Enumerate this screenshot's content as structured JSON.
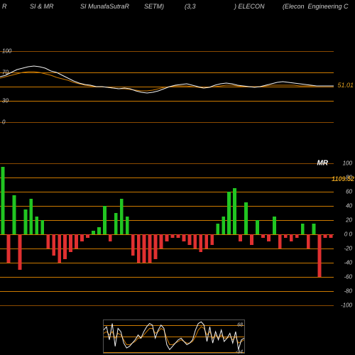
{
  "header": {
    "parts": [
      "R",
      "SI & MR",
      "SI MunafaSutraR",
      "SETM)",
      "(3,3",
      ") ELECON",
      "(Elecon  Engineering C"
    ]
  },
  "colors": {
    "background": "#000000",
    "grid_orange": "#cc7a00",
    "grid_dark_orange": "#8a4a00",
    "line_white": "#f0f0f0",
    "line_orange": "#cc7a00",
    "bar_green": "#21c521",
    "bar_red": "#e03030",
    "text": "#cccccc",
    "accent_orange": "#e0a020",
    "border": "#555555"
  },
  "top_chart": {
    "type": "line",
    "ylim": [
      0,
      100
    ],
    "gridlines": [
      {
        "y": 100,
        "label": "100",
        "color": "#8a4a00"
      },
      {
        "y": 70,
        "label": "70",
        "color": "#cc7a00"
      },
      {
        "y": 50,
        "label": "",
        "color": "#cc7a00"
      },
      {
        "y": 30,
        "label": "30",
        "color": "#cc7a00"
      },
      {
        "y": 0,
        "label": "0",
        "color": "#8a4a00"
      }
    ],
    "value_label": "51.01",
    "value_y": 51.01,
    "series_white": [
      64,
      66,
      70,
      74,
      76,
      78,
      79,
      78,
      76,
      72,
      70,
      66,
      62,
      58,
      55,
      53,
      52,
      50,
      50,
      49,
      48,
      47,
      48,
      47,
      44,
      42,
      41,
      42,
      44,
      47,
      50,
      52,
      53,
      54,
      52,
      50,
      48,
      49,
      52,
      54,
      55,
      54,
      52,
      51,
      50,
      49,
      50,
      52,
      54,
      56,
      57,
      56,
      55,
      54,
      53,
      52,
      51,
      51,
      51,
      51
    ],
    "series_orange": [
      62,
      64,
      66,
      68,
      70,
      71,
      71,
      70,
      68,
      66,
      63,
      61,
      59,
      56,
      54,
      52,
      51,
      50,
      50,
      49,
      48,
      47,
      47,
      46,
      45,
      44,
      44,
      45,
      47,
      49,
      50,
      51,
      51,
      51,
      50,
      49,
      48,
      49,
      50,
      51,
      52,
      52,
      51,
      50,
      50,
      50,
      50,
      51,
      52,
      52,
      52,
      52,
      52,
      51,
      51,
      51,
      51,
      51,
      51,
      51
    ]
  },
  "mid_chart": {
    "type": "bar",
    "ylim": [
      -100,
      100
    ],
    "gridlines": [
      {
        "y": 100,
        "label": "100",
        "color": "#8a4a00"
      },
      {
        "y": 80,
        "label": "80",
        "color": "#cc7a00"
      },
      {
        "y": 60,
        "label": "60",
        "color": "#cc7a00"
      },
      {
        "y": 40,
        "label": "40",
        "color": "#cc7a00"
      },
      {
        "y": 20,
        "label": "20",
        "color": "#cc7a00"
      },
      {
        "y": 0,
        "label": "0  0",
        "color": "#cc7a00"
      },
      {
        "y": -20,
        "label": "-20",
        "color": "#cc7a00"
      },
      {
        "y": -40,
        "label": "-40",
        "color": "#cc7a00"
      },
      {
        "y": -60,
        "label": "-60",
        "color": "#cc7a00"
      },
      {
        "y": -80,
        "label": "-80",
        "color": "#cc7a00"
      },
      {
        "y": -100,
        "label": "-100",
        "color": "#8a4a00"
      }
    ],
    "mr_label": "MR",
    "value_label": "1109.52",
    "value_y": 78,
    "bars": [
      95,
      -40,
      55,
      -50,
      35,
      50,
      25,
      20,
      -20,
      -30,
      -40,
      -35,
      -25,
      -20,
      -10,
      -5,
      5,
      10,
      40,
      -10,
      30,
      50,
      25,
      -30,
      -40,
      -40,
      -40,
      -35,
      -20,
      -10,
      -5,
      -5,
      -10,
      -15,
      -20,
      -25,
      -20,
      -15,
      15,
      25,
      60,
      65,
      -10,
      45,
      -15,
      20,
      -5,
      -10,
      25,
      -20,
      -5,
      -10,
      -5,
      15,
      -20,
      15,
      -60,
      -5,
      -5
    ]
  },
  "bot_chart": {
    "type": "line",
    "ylim": [
      -100,
      100
    ],
    "gridlines": [
      {
        "y": 68,
        "label": "68",
        "color": "#cc7a00"
      },
      {
        "y": 0,
        "label": "",
        "color": "#cc7a00"
      },
      {
        "y": -94,
        "label": "-94",
        "color": "#cc7a00"
      }
    ],
    "series_white": [
      40,
      60,
      -20,
      80,
      -60,
      50,
      30,
      -40,
      -70,
      -60,
      -40,
      -20,
      10,
      -10,
      30,
      60,
      80,
      70,
      -10,
      40,
      70,
      50,
      -50,
      -80,
      -60,
      -40,
      -20,
      -10,
      -30,
      -50,
      -40,
      -20,
      40,
      80,
      90,
      70,
      -30,
      60,
      -40,
      30,
      -20,
      40,
      -30,
      -10,
      20,
      -40,
      30,
      -80,
      -20,
      -10
    ],
    "series_orange": [
      20,
      30,
      10,
      30,
      -10,
      20,
      10,
      -20,
      -50,
      -50,
      -40,
      -30,
      -10,
      -10,
      10,
      30,
      50,
      50,
      20,
      30,
      50,
      40,
      -10,
      -50,
      -50,
      -40,
      -30,
      -20,
      -30,
      -40,
      -40,
      -30,
      0,
      40,
      60,
      50,
      10,
      30,
      -10,
      10,
      -10,
      10,
      -10,
      -10,
      0,
      -20,
      0,
      -40,
      -30,
      -20
    ]
  }
}
